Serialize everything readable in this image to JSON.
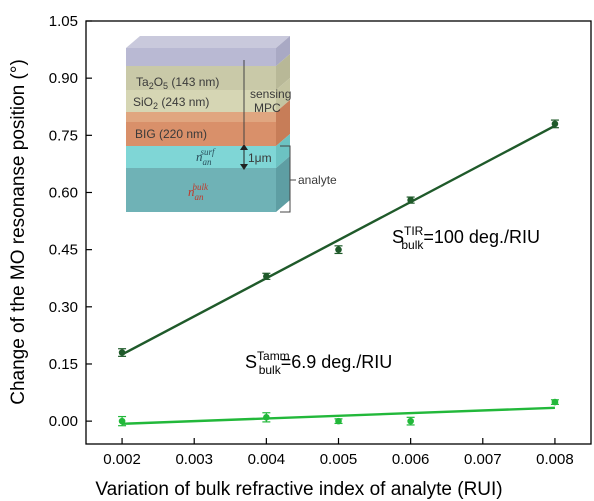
{
  "chart_data": {
    "type": "scatter",
    "xlabel": "Variation of bulk refractive index of analyte (RUI)",
    "ylabel": "Change of the MO resonanse position (°)",
    "xlim": [
      0.0015,
      0.0085
    ],
    "ylim": [
      -0.06,
      1.05
    ],
    "x_ticks": [
      "0.002",
      "0.003",
      "0.004",
      "0.005",
      "0.006",
      "0.007",
      "0.008"
    ],
    "y_ticks": [
      "0.00",
      "0.15",
      "0.30",
      "0.45",
      "0.60",
      "0.75",
      "0.90",
      "1.05"
    ],
    "grid": false,
    "series": [
      {
        "color": "#1f5a2a",
        "x": [
          0.002,
          0.004,
          0.005,
          0.006,
          0.008
        ],
        "y": [
          0.18,
          0.38,
          0.45,
          0.58,
          0.78
        ],
        "error": [
          0.01,
          0.008,
          0.01,
          0.008,
          0.01
        ],
        "fit": {
          "x": [
            0.002,
            0.008
          ],
          "y": [
            0.175,
            0.775
          ]
        }
      },
      {
        "color": "#22b83a",
        "x": [
          0.002,
          0.004,
          0.005,
          0.006,
          0.008
        ],
        "y": [
          0.0,
          0.01,
          0.0,
          0.0,
          0.05
        ],
        "error": [
          0.012,
          0.012,
          0.006,
          0.01,
          0.006
        ],
        "fit": {
          "x": [
            0.002,
            0.008
          ],
          "y": [
            -0.007,
            0.035
          ]
        }
      }
    ],
    "annotations": [
      {
        "base": "S",
        "sup": "TIR",
        "sub": "bulk",
        "text": "=100 deg./RIU"
      },
      {
        "base": "S",
        "sup": "Tamm",
        "sub": "bulk",
        "text": "=6.9 deg./RIU"
      }
    ]
  },
  "inset": {
    "layers": [
      {
        "label": "Ta",
        "sub": "2",
        "rest": "O",
        "sub2": "5",
        "tail": " (143 nm)",
        "color": "#c9c9a8"
      },
      {
        "label": "SiO",
        "sub": "2",
        "rest": " (243 nm)",
        "color": "#d6d6b4"
      },
      {
        "label": "BIG (220 nm)",
        "color": "#d9906a"
      }
    ],
    "sensing_label": [
      "sensing",
      "MPC"
    ],
    "analyte_label": "analyte",
    "thickness_label": "1μm",
    "n_surf": {
      "base": "n",
      "sup": "surf",
      "sub": "an"
    },
    "n_bulk": {
      "base": "n",
      "sup": "bulk",
      "sub": "an"
    }
  }
}
